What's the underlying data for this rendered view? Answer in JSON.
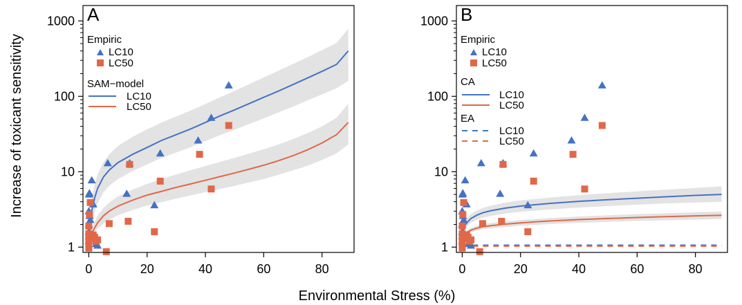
{
  "figure": {
    "xlabel": "Environmental Stress (%)",
    "ylabel": "Increase of toxicant sensitivity"
  },
  "colors": {
    "lc10": "#4472c4",
    "lc50": "#e06848",
    "band": "#e3e3e3"
  },
  "chart_data": [
    {
      "type": "scatter",
      "panel": "A",
      "x_ticks": [
        0,
        20,
        40,
        60,
        80
      ],
      "y_ticks": [
        1,
        10,
        100,
        1000
      ],
      "xlim": [
        -2,
        91
      ],
      "ylim": [
        0.85,
        1600
      ],
      "y_scale": "log",
      "legend": {
        "empiric_title": "Empiric",
        "model_title": "SAM−model",
        "lc10": "LC10",
        "lc50": "LC50"
      },
      "series": [
        {
          "name": "LC10",
          "kind": "points",
          "marker": "triangle",
          "x": [
            0,
            0,
            0,
            0,
            0,
            0.1,
            0.2,
            0.3,
            0.5,
            1,
            1.5,
            2,
            2.5,
            3,
            6.5,
            13,
            14,
            22.5,
            24.5,
            37.5,
            42,
            48
          ],
          "y": [
            1.2,
            1.4,
            1.6,
            2,
            3,
            5,
            5.2,
            2.6,
            2.3,
            7.7,
            3.7,
            1.3,
            1.1,
            1.05,
            13,
            5.1,
            13,
            3.6,
            17.5,
            26,
            52,
            140
          ]
        },
        {
          "name": "LC50",
          "kind": "points",
          "marker": "square",
          "x": [
            0,
            0,
            0,
            0,
            0,
            0,
            0.2,
            0.5,
            1,
            1.5,
            2,
            2.5,
            3,
            6,
            7,
            13.5,
            14,
            22.5,
            24.5,
            38,
            42,
            48
          ],
          "y": [
            0.97,
            1.05,
            1.15,
            1.3,
            1.5,
            1.9,
            2.7,
            3.9,
            1.3,
            1.45,
            1.35,
            1.2,
            1.25,
            0.87,
            2.05,
            2.2,
            12.5,
            1.6,
            7.5,
            17,
            5.9,
            41
          ]
        },
        {
          "name": "LC10",
          "kind": "line",
          "x": [
            0,
            0.5,
            1,
            2,
            3,
            5,
            7,
            10,
            15,
            20,
            25,
            30,
            35,
            40,
            45,
            50,
            55,
            60,
            65,
            70,
            75,
            80,
            85,
            89
          ],
          "y": [
            1,
            2.2,
            3,
            4.5,
            6,
            8.5,
            10.5,
            13.2,
            17,
            21,
            26,
            31,
            37,
            45,
            55,
            66,
            80,
            97,
            117,
            143,
            175,
            214,
            265,
            400
          ],
          "band_lower": [
            1,
            1.6,
            2,
            2.9,
            3.8,
            5.3,
            6.5,
            8,
            10.2,
            12.5,
            15.3,
            18,
            21.2,
            25.5,
            30.5,
            36,
            43,
            51,
            61,
            73,
            88,
            106,
            128,
            160
          ],
          "band_upper": [
            1,
            3,
            4.4,
            6.8,
            9.2,
            13.3,
            17,
            22,
            29,
            36.5,
            45,
            54,
            65,
            79,
            97,
            118,
            145,
            178,
            218,
            268,
            330,
            410,
            510,
            790
          ]
        },
        {
          "name": "LC50",
          "kind": "line",
          "x": [
            0,
            0.5,
            1,
            2,
            3,
            5,
            7,
            10,
            15,
            20,
            25,
            30,
            35,
            40,
            45,
            50,
            55,
            60,
            65,
            70,
            75,
            80,
            85,
            89
          ],
          "y": [
            1,
            1.3,
            1.5,
            1.8,
            2.1,
            2.6,
            3,
            3.5,
            4.2,
            4.9,
            5.5,
            6.2,
            6.9,
            7.7,
            8.6,
            9.6,
            10.8,
            12.2,
            14,
            16.3,
            19.5,
            24,
            31,
            45
          ],
          "band_lower": [
            1,
            1.2,
            1.35,
            1.55,
            1.75,
            2.05,
            2.3,
            2.65,
            3.1,
            3.55,
            3.95,
            4.4,
            4.85,
            5.35,
            5.9,
            6.5,
            7.2,
            8,
            9.1,
            10.4,
            12,
            14.3,
            17.5,
            23
          ],
          "band_upper": [
            1,
            1.45,
            1.75,
            2.2,
            2.6,
            3.3,
            3.9,
            4.7,
            5.8,
            6.9,
            8,
            9.2,
            10.5,
            11.9,
            13.5,
            15.3,
            17.4,
            19.9,
            23,
            27,
            32.5,
            40,
            52,
            80
          ]
        }
      ]
    },
    {
      "type": "scatter",
      "panel": "B",
      "x_ticks": [
        0,
        20,
        40,
        60,
        80
      ],
      "y_ticks": [
        1,
        10,
        100,
        1000
      ],
      "xlim": [
        -2,
        91
      ],
      "ylim": [
        0.85,
        1600
      ],
      "y_scale": "log",
      "legend": {
        "empiric_title": "Empiric",
        "ca_title": "CA",
        "ea_title": "EA",
        "lc10": "LC10",
        "lc50": "LC50"
      },
      "series": [
        {
          "name": "LC10",
          "kind": "points",
          "marker": "triangle",
          "x": [
            0,
            0,
            0,
            0,
            0,
            0.1,
            0.2,
            0.3,
            0.5,
            1,
            1.5,
            2,
            2.5,
            3,
            6.5,
            13,
            14,
            22.5,
            24.5,
            37.5,
            42,
            48
          ],
          "y": [
            1.2,
            1.4,
            1.6,
            2,
            3,
            5,
            5.2,
            2.6,
            2.3,
            7.7,
            3.7,
            1.3,
            1.1,
            1.05,
            13,
            5.1,
            13,
            3.6,
            17.5,
            26,
            52,
            140
          ]
        },
        {
          "name": "LC50",
          "kind": "points",
          "marker": "square",
          "x": [
            0,
            0,
            0,
            0,
            0,
            0,
            0.2,
            0.5,
            1,
            1.5,
            2,
            2.5,
            3,
            6,
            7,
            13.5,
            14,
            22.5,
            24.5,
            38,
            42,
            48
          ],
          "y": [
            0.97,
            1.05,
            1.15,
            1.3,
            1.5,
            1.9,
            2.7,
            3.9,
            1.3,
            1.45,
            1.35,
            1.2,
            1.25,
            0.87,
            2.05,
            2.2,
            12.5,
            1.6,
            7.5,
            17,
            5.9,
            41
          ]
        },
        {
          "name": "LC10",
          "kind": "line",
          "x": [
            0,
            0.5,
            1,
            2,
            3,
            5,
            7,
            10,
            15,
            20,
            25,
            30,
            40,
            50,
            60,
            70,
            80,
            89
          ],
          "y": [
            1,
            1.7,
            1.95,
            2.2,
            2.4,
            2.65,
            2.85,
            3.05,
            3.3,
            3.5,
            3.65,
            3.8,
            4.05,
            4.25,
            4.45,
            4.65,
            4.85,
            5
          ],
          "band_lower": [
            1,
            1.55,
            1.75,
            1.95,
            2.1,
            2.3,
            2.45,
            2.6,
            2.8,
            2.95,
            3.05,
            3.15,
            3.35,
            3.5,
            3.65,
            3.8,
            3.9,
            4
          ],
          "band_upper": [
            1,
            1.9,
            2.2,
            2.5,
            2.75,
            3.05,
            3.3,
            3.55,
            3.9,
            4.15,
            4.35,
            4.55,
            4.9,
            5.2,
            5.5,
            5.8,
            6.1,
            6.4
          ]
        },
        {
          "name": "LC50",
          "kind": "line",
          "x": [
            0,
            0.5,
            1,
            2,
            3,
            5,
            7,
            10,
            15,
            20,
            25,
            30,
            40,
            50,
            60,
            70,
            80,
            89
          ],
          "y": [
            1,
            1.35,
            1.5,
            1.6,
            1.68,
            1.78,
            1.86,
            1.93,
            2.02,
            2.1,
            2.16,
            2.22,
            2.32,
            2.4,
            2.47,
            2.54,
            2.6,
            2.65
          ],
          "band_lower": [
            1,
            1.28,
            1.4,
            1.5,
            1.57,
            1.65,
            1.72,
            1.78,
            1.85,
            1.92,
            1.97,
            2.02,
            2.1,
            2.16,
            2.22,
            2.27,
            2.32,
            2.36
          ],
          "band_upper": [
            1,
            1.42,
            1.6,
            1.72,
            1.8,
            1.92,
            2.01,
            2.09,
            2.2,
            2.29,
            2.36,
            2.43,
            2.55,
            2.65,
            2.74,
            2.82,
            2.9,
            2.96
          ]
        },
        {
          "name": "LC10",
          "kind": "dashed-line",
          "x": [
            0,
            89
          ],
          "y": [
            1.06,
            1.06
          ]
        },
        {
          "name": "LC50",
          "kind": "dashed-line",
          "x": [
            0,
            89
          ],
          "y": [
            1.03,
            1.03
          ]
        }
      ]
    }
  ]
}
